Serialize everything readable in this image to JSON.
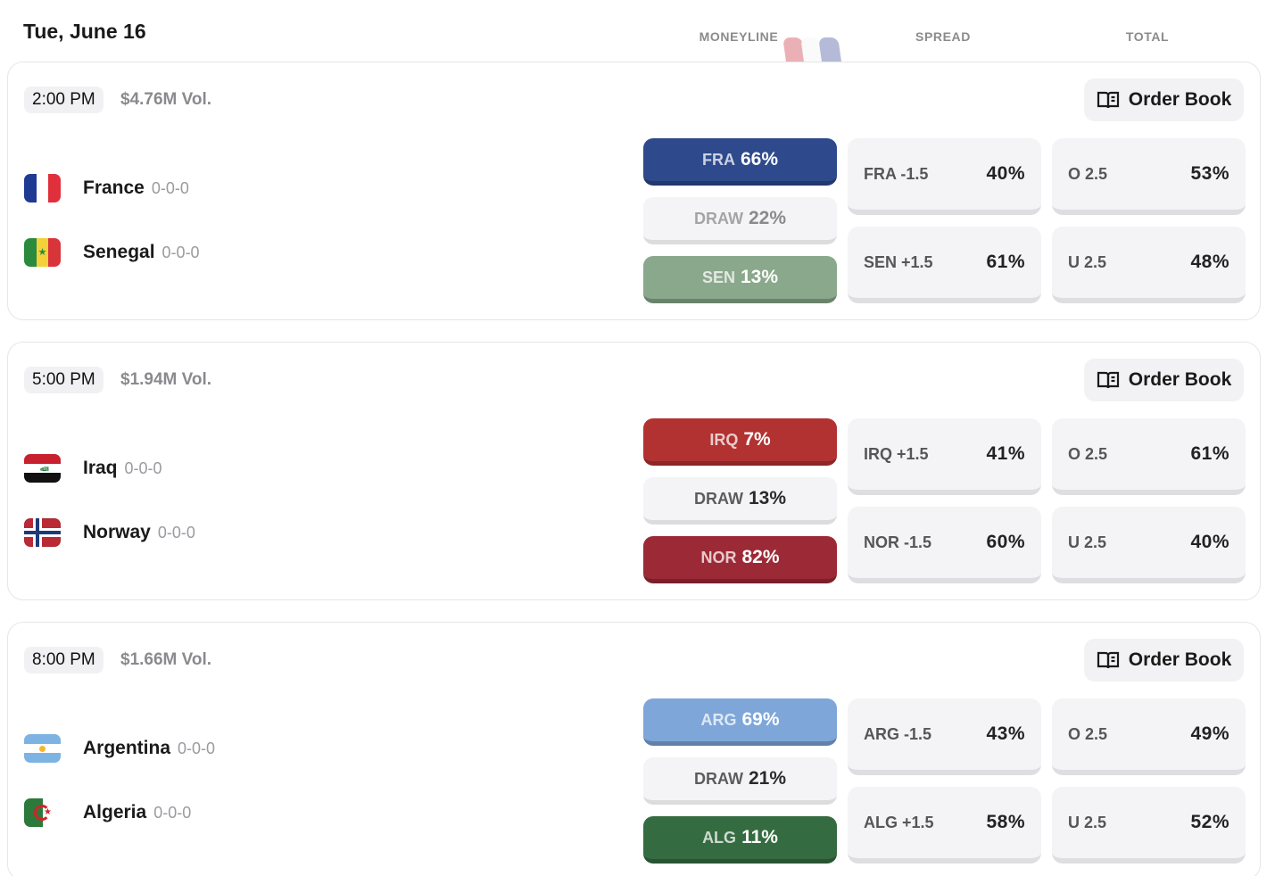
{
  "header": {
    "date": "Tue, June 16",
    "columns": {
      "moneyline": "MONEYLINE",
      "spread": "SPREAD",
      "total": "TOTAL"
    }
  },
  "order_book_label": "Order Book",
  "games": [
    {
      "time": "2:00 PM",
      "volume": "$4.76M Vol.",
      "team1": {
        "name": "France",
        "record": "0-0-0",
        "flag": "france-flag"
      },
      "team2": {
        "name": "Senegal",
        "record": "0-0-0",
        "flag": "senegal-flag"
      },
      "moneyline": {
        "team1": {
          "abbr": "FRA",
          "pct": "66%",
          "color": "#2e4a8c"
        },
        "draw": {
          "abbr": "DRAW",
          "pct": "22%"
        },
        "team2": {
          "abbr": "SEN",
          "pct": "13%",
          "color": "#8aa88c"
        }
      },
      "spread": [
        {
          "label": "FRA -1.5",
          "value": "40%"
        },
        {
          "label": "SEN +1.5",
          "value": "61%"
        }
      ],
      "total": [
        {
          "label": "O 2.5",
          "value": "53%"
        },
        {
          "label": "U 2.5",
          "value": "48%"
        }
      ]
    },
    {
      "time": "5:00 PM",
      "volume": "$1.94M Vol.",
      "team1": {
        "name": "Iraq",
        "record": "0-0-0",
        "flag": "iraq-flag"
      },
      "team2": {
        "name": "Norway",
        "record": "0-0-0",
        "flag": "norway-flag"
      },
      "moneyline": {
        "team1": {
          "abbr": "IRQ",
          "pct": "7%",
          "color": "#b23232"
        },
        "draw": {
          "abbr": "DRAW",
          "pct": "13%"
        },
        "team2": {
          "abbr": "NOR",
          "pct": "82%",
          "color": "#9c2a36"
        }
      },
      "spread": [
        {
          "label": "IRQ +1.5",
          "value": "41%"
        },
        {
          "label": "NOR -1.5",
          "value": "60%"
        }
      ],
      "total": [
        {
          "label": "O 2.5",
          "value": "61%"
        },
        {
          "label": "U 2.5",
          "value": "40%"
        }
      ]
    },
    {
      "time": "8:00 PM",
      "volume": "$1.66M Vol.",
      "team1": {
        "name": "Argentina",
        "record": "0-0-0",
        "flag": "argentina-flag"
      },
      "team2": {
        "name": "Algeria",
        "record": "0-0-0",
        "flag": "algeria-flag"
      },
      "moneyline": {
        "team1": {
          "abbr": "ARG",
          "pct": "69%",
          "color": "#7ea6d9"
        },
        "draw": {
          "abbr": "DRAW",
          "pct": "21%"
        },
        "team2": {
          "abbr": "ALG",
          "pct": "11%",
          "color": "#356b40"
        }
      },
      "spread": [
        {
          "label": "ARG -1.5",
          "value": "43%"
        },
        {
          "label": "ALG +1.5",
          "value": "58%"
        }
      ],
      "total": [
        {
          "label": "O 2.5",
          "value": "49%"
        },
        {
          "label": "U 2.5",
          "value": "52%"
        }
      ]
    }
  ]
}
